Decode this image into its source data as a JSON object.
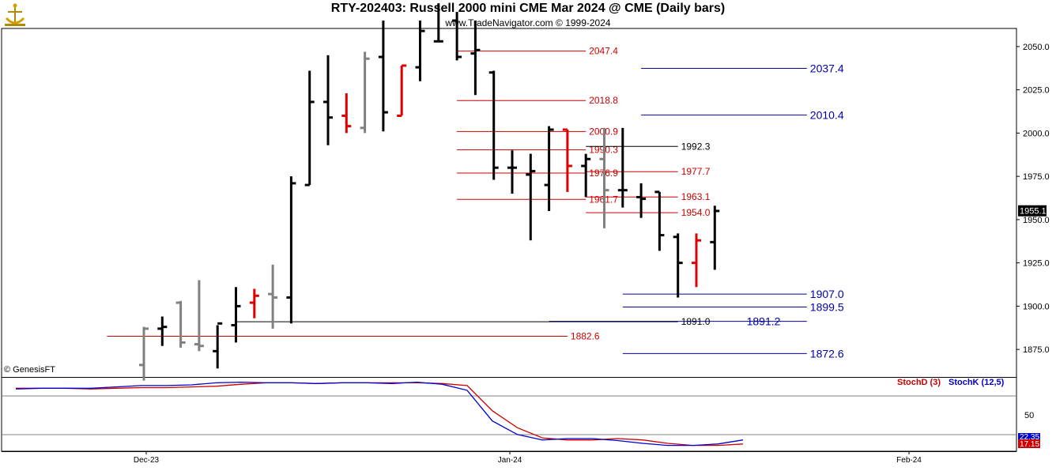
{
  "header": {
    "title": "RTY-202403:  Russell 2000 mini CME Mar 2024 @ CME  (Daily bars)",
    "subtitle": "www.TradeNavigator.com © 1999-2024"
  },
  "footer": {
    "copyright": "© GenesisFT"
  },
  "indicator": {
    "stochd_label": "StochD (3)",
    "stochk_label": "StochK (12,5)",
    "stochd_color": "#cc0000",
    "stochk_color": "#0000cc",
    "y_tick": "50",
    "badge_k": "22.35",
    "badge_d": "17.15"
  },
  "colors": {
    "up": "#000000",
    "down": "#e00000",
    "neutral": "#808080",
    "red_level": "#cc0000",
    "blue_level": "#0000aa"
  },
  "chart_data": [
    {
      "type": "ohlc",
      "title": "RTY-202403:  Russell 2000 mini CME Mar 2024 @ CME  (Daily bars)",
      "ylim": [
        1860,
        2060
      ],
      "y_ticks": [
        "2050.0",
        "2025.0",
        "2000.0",
        "1975.0",
        "1950.0",
        "1925.0",
        "1900.0",
        "1875.0"
      ],
      "x_ticks": [
        "Dec-23",
        "Jan-24",
        "Feb-24"
      ],
      "last_price": "1955.1",
      "bars": [
        {
          "o": 1866,
          "h": 1888,
          "l": 1857,
          "c": 1887,
          "dir": "neutral"
        },
        {
          "o": 1887,
          "h": 1894,
          "l": 1877,
          "c": 1888,
          "dir": "up"
        },
        {
          "o": 1902,
          "h": 1903,
          "l": 1876,
          "c": 1879,
          "dir": "neutral"
        },
        {
          "o": 1878,
          "h": 1915,
          "l": 1874,
          "c": 1877,
          "dir": "neutral"
        },
        {
          "o": 1874,
          "h": 1889,
          "l": 1864,
          "c": 1890,
          "dir": "up"
        },
        {
          "o": 1889,
          "h": 1911,
          "l": 1879,
          "c": 1900,
          "dir": "up"
        },
        {
          "o": 1902,
          "h": 1910,
          "l": 1893,
          "c": 1906,
          "dir": "down"
        },
        {
          "o": 1907,
          "h": 1924,
          "l": 1887,
          "c": 1905,
          "dir": "neutral"
        },
        {
          "o": 1905,
          "h": 1975,
          "l": 1890,
          "c": 1971,
          "dir": "up"
        },
        {
          "o": 1970,
          "h": 2036,
          "l": 1970,
          "c": 2018,
          "dir": "up"
        },
        {
          "o": 2018,
          "h": 2045,
          "l": 1993,
          "c": 2009,
          "dir": "up"
        },
        {
          "o": 2010,
          "h": 2023,
          "l": 2000,
          "c": 2004,
          "dir": "down"
        },
        {
          "o": 2003,
          "h": 2047,
          "l": 2000,
          "c": 2043,
          "dir": "neutral"
        },
        {
          "o": 2044,
          "h": 2065,
          "l": 2001,
          "c": 2012,
          "dir": "up"
        },
        {
          "o": 2010,
          "h": 2039,
          "l": 2010,
          "c": 2039,
          "dir": "down"
        },
        {
          "o": 2038,
          "h": 2065,
          "l": 2030,
          "c": 2059,
          "dir": "up"
        },
        {
          "o": 2053,
          "h": 2075,
          "l": 2053,
          "c": 2053,
          "dir": "up"
        },
        {
          "o": 2065,
          "h": 2070,
          "l": 2042,
          "c": 2044,
          "dir": "up"
        },
        {
          "o": 2046,
          "h": 2065,
          "l": 2022,
          "c": 2048,
          "dir": "up"
        },
        {
          "o": 2035,
          "h": 2036,
          "l": 1973,
          "c": 1980,
          "dir": "up"
        },
        {
          "o": 1980,
          "h": 1990,
          "l": 1965,
          "c": 1980,
          "dir": "up"
        },
        {
          "o": 1976,
          "h": 1988,
          "l": 1938,
          "c": 1978,
          "dir": "up"
        },
        {
          "o": 1970,
          "h": 2004,
          "l": 1955,
          "c": 2002,
          "dir": "up"
        },
        {
          "o": 2002,
          "h": 2002,
          "l": 1966,
          "c": 1981,
          "dir": "down"
        },
        {
          "o": 1981,
          "h": 1988,
          "l": 1963,
          "c": 1985,
          "dir": "up"
        },
        {
          "o": 1985,
          "h": 2003,
          "l": 1945,
          "c": 1967,
          "dir": "neutral"
        },
        {
          "o": 1967,
          "h": 2003,
          "l": 1957,
          "c": 1967,
          "dir": "up"
        },
        {
          "o": 1963,
          "h": 1971,
          "l": 1951,
          "c": 1962,
          "dir": "up"
        },
        {
          "o": 1966,
          "h": 1966,
          "l": 1932,
          "c": 1941,
          "dir": "up"
        },
        {
          "o": 1940,
          "h": 1942,
          "l": 1905,
          "c": 1925,
          "dir": "up"
        },
        {
          "o": 1925,
          "h": 1942,
          "l": 1911,
          "c": 1938,
          "dir": "down"
        },
        {
          "o": 1937,
          "h": 1958,
          "l": 1921,
          "c": 1955,
          "dir": "up"
        }
      ],
      "levels": [
        {
          "value": 2047.4,
          "label": "2047.4",
          "color": "red",
          "from_bar": 17,
          "to_bar": 24
        },
        {
          "value": 2018.8,
          "label": "2018.8",
          "color": "red",
          "from_bar": 17,
          "to_bar": 24
        },
        {
          "value": 2000.9,
          "label": "2000.9",
          "color": "red",
          "from_bar": 17,
          "to_bar": 24
        },
        {
          "value": 1990.3,
          "label": "1990.3",
          "color": "red",
          "from_bar": 17,
          "to_bar": 24
        },
        {
          "value": 1976.9,
          "label": "1976.9",
          "color": "red",
          "from_bar": 17,
          "to_bar": 24
        },
        {
          "value": 1961.7,
          "label": "1961.7",
          "color": "red",
          "from_bar": 17,
          "to_bar": 24
        },
        {
          "value": 1882.6,
          "label": "1882.6",
          "color": "red",
          "from_bar": -2,
          "to_bar": 23
        },
        {
          "value": 2037.4,
          "label": "2037.4",
          "color": "blue",
          "from_bar": 27,
          "to_bar": 36
        },
        {
          "value": 2010.4,
          "label": "2010.4",
          "color": "blue",
          "from_bar": 27,
          "to_bar": 36
        },
        {
          "value": 1907.0,
          "label": "1907.0",
          "color": "blue",
          "from_bar": 26,
          "to_bar": 36
        },
        {
          "value": 1899.5,
          "label": "1899.5",
          "color": "blue",
          "from_bar": 26,
          "to_bar": 36
        },
        {
          "value": 1891.2,
          "label": "1891.2",
          "color": "blue",
          "from_bar": 22,
          "to_bar": 36
        },
        {
          "value": 1872.6,
          "label": "1872.6",
          "color": "blue",
          "from_bar": 26,
          "to_bar": 36
        },
        {
          "value": 1992.3,
          "label": "1992.3",
          "color": "black",
          "from_bar": 24,
          "to_bar": 29
        },
        {
          "value": 1977.7,
          "label": "1977.7",
          "color": "red",
          "from_bar": 24,
          "to_bar": 29
        },
        {
          "value": 1963.1,
          "label": "1963.1",
          "color": "red",
          "from_bar": 24,
          "to_bar": 29
        },
        {
          "value": 1954.0,
          "label": "1954.0",
          "color": "red",
          "from_bar": 24,
          "to_bar": 29
        },
        {
          "value": 1891.0,
          "label": "1891.0",
          "color": "black",
          "from_bar": 5,
          "to_bar": 29
        }
      ]
    },
    {
      "type": "line",
      "title": "",
      "ylim": [
        0,
        100
      ],
      "y_ticks": [
        "50"
      ],
      "series": [
        {
          "name": "StochD (3)",
          "values": [
            88,
            88,
            88,
            87,
            88,
            89,
            89,
            90,
            91,
            94,
            96,
            96,
            95,
            96,
            96,
            96,
            96,
            95,
            92,
            55,
            30,
            15,
            12,
            12,
            14,
            12,
            7,
            4,
            4,
            6
          ]
        },
        {
          "name": "StochK (12,5)",
          "values": [
            87,
            88,
            88,
            88,
            90,
            92,
            92,
            93,
            96,
            97,
            96,
            96,
            95,
            96,
            96,
            95,
            97,
            94,
            85,
            40,
            20,
            12,
            14,
            14,
            11,
            7,
            4,
            4,
            6,
            12
          ]
        }
      ]
    }
  ]
}
